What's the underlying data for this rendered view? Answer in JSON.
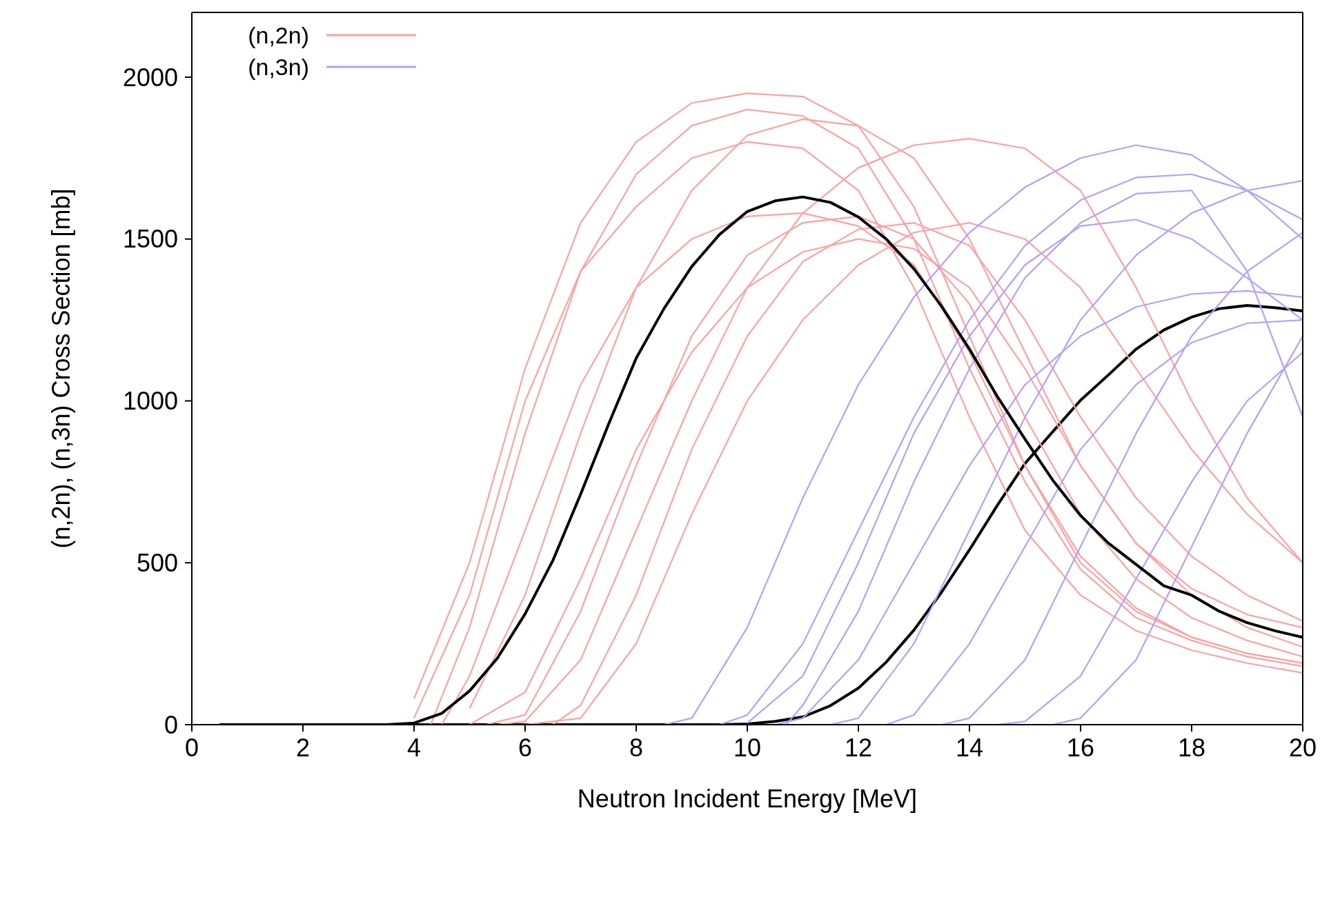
{
  "chart_data": {
    "type": "line",
    "xlabel": "Neutron Incident Energy [MeV]",
    "ylabel": "(n,2n), (n,3n) Cross Section [mb]",
    "xlim": [
      0,
      20
    ],
    "xticks": [
      0,
      2,
      4,
      6,
      8,
      10,
      12,
      14,
      16,
      18,
      20
    ],
    "ylim": [
      0,
      2200
    ],
    "yticks": [
      0,
      500,
      1000,
      1500,
      2000
    ],
    "grid": false,
    "legend": "top left",
    "marker": "none",
    "line_style": "solid",
    "series": [
      {
        "color": "#000000",
        "x": [
          4,
          4.5,
          5,
          5.5,
          6,
          6.5,
          7,
          7.5,
          8,
          8.5,
          9,
          9.5,
          10,
          10.5,
          11,
          11.5,
          12,
          12.5,
          13,
          13.5,
          14,
          14.5,
          15,
          15.5,
          16,
          16.5,
          17,
          17.5,
          18,
          18.5,
          19,
          19.5,
          20
        ],
        "values": [
          0,
          0,
          0,
          0,
          0,
          0,
          0,
          0,
          0,
          0,
          0,
          0,
          2,
          10,
          24,
          59,
          113,
          193,
          292,
          410,
          540,
          677,
          807,
          905,
          1002,
          1080,
          1160,
          1219,
          1259,
          1285,
          1295,
          1288,
          1278
        ]
      },
      {
        "name": "(n,2n)",
        "color": "#ffa0a0",
        "x": [
          4,
          5,
          6,
          7,
          8,
          9,
          10,
          11,
          12,
          13,
          14,
          15,
          16,
          17,
          18,
          19,
          20
        ],
        "values": [
          80,
          500,
          1100,
          1550,
          1800,
          1920,
          1950,
          1940,
          1850,
          1600,
          1200,
          800,
          500,
          350,
          270,
          220,
          190
        ]
      },
      {
        "color": "#ffa0a0",
        "x": [
          4.3,
          5,
          6,
          7,
          8,
          9,
          10,
          11,
          12,
          13,
          14,
          15,
          16,
          17,
          18,
          19,
          20
        ],
        "values": [
          0,
          300,
          900,
          1400,
          1700,
          1850,
          1900,
          1880,
          1780,
          1500,
          1100,
          750,
          480,
          330,
          260,
          210,
          180
        ]
      },
      {
        "color": "#ffa0a0",
        "x": [
          4.5,
          5,
          6,
          7,
          8,
          9,
          10,
          11,
          12,
          13,
          14,
          15,
          16,
          17,
          18,
          19,
          20
        ],
        "values": [
          0,
          150,
          600,
          1050,
          1350,
          1500,
          1570,
          1580,
          1540,
          1420,
          1150,
          800,
          520,
          360,
          270,
          220,
          190
        ]
      },
      {
        "color": "#ffa0a0",
        "x": [
          5,
          6,
          7,
          8,
          9,
          10,
          11,
          12,
          13,
          14,
          15,
          16,
          17,
          18,
          19,
          20
        ],
        "values": [
          50,
          400,
          900,
          1350,
          1650,
          1820,
          1870,
          1850,
          1750,
          1500,
          1150,
          800,
          560,
          420,
          340,
          300
        ]
      },
      {
        "color": "#ffa0a0",
        "x": [
          5,
          6,
          7,
          8,
          9,
          10,
          11,
          12,
          13,
          14,
          15,
          16,
          17,
          18,
          19,
          20
        ],
        "values": [
          0,
          100,
          450,
          850,
          1150,
          1350,
          1460,
          1500,
          1470,
          1350,
          1100,
          800,
          560,
          400,
          300,
          240
        ]
      },
      {
        "color": "#ffa0a0",
        "x": [
          5.5,
          6,
          7,
          8,
          9,
          10,
          11,
          12,
          13,
          14,
          15,
          16,
          17,
          18,
          19,
          20
        ],
        "values": [
          0,
          10,
          200,
          600,
          1000,
          1350,
          1580,
          1720,
          1790,
          1810,
          1780,
          1650,
          1350,
          1000,
          700,
          500
        ]
      },
      {
        "color": "#ffa0a0",
        "x": [
          6,
          7,
          8,
          9,
          10,
          11,
          12,
          13,
          14,
          15,
          16,
          17,
          18,
          19,
          20
        ],
        "values": [
          0,
          20,
          250,
          650,
          1000,
          1250,
          1420,
          1520,
          1550,
          1500,
          1350,
          1100,
          850,
          650,
          500
        ]
      },
      {
        "color": "#ffa0a0",
        "x": [
          5.3,
          6,
          7,
          8,
          9,
          10,
          11,
          12,
          13,
          14,
          15,
          16,
          17,
          18,
          19,
          20
        ],
        "values": [
          0,
          30,
          350,
          800,
          1200,
          1450,
          1550,
          1570,
          1500,
          1300,
          950,
          650,
          450,
          330,
          260,
          210
        ]
      },
      {
        "color": "#ffa0a0",
        "x": [
          4,
          5,
          6,
          7,
          8,
          9,
          10,
          11,
          12,
          13,
          14,
          15,
          16,
          17,
          18,
          19,
          20
        ],
        "values": [
          20,
          400,
          1000,
          1400,
          1600,
          1750,
          1800,
          1780,
          1650,
          1350,
          950,
          600,
          400,
          290,
          230,
          190,
          160
        ]
      },
      {
        "color": "#ffa0a0",
        "x": [
          6.5,
          7,
          8,
          9,
          10,
          11,
          12,
          13,
          14,
          15,
          16,
          17,
          18,
          19,
          20
        ],
        "values": [
          0,
          60,
          400,
          850,
          1200,
          1430,
          1530,
          1550,
          1480,
          1250,
          950,
          700,
          520,
          400,
          320
        ]
      },
      {
        "name": "(n,3n)",
        "color": "#b0a0ff",
        "x": [
          8.5,
          9,
          10,
          11,
          12,
          13,
          14,
          15,
          16,
          17,
          18,
          19,
          20
        ],
        "values": [
          0,
          20,
          300,
          700,
          1050,
          1320,
          1520,
          1660,
          1750,
          1790,
          1760,
          1650,
          1500
        ]
      },
      {
        "color": "#b0a0ff",
        "x": [
          9.5,
          10,
          11,
          12,
          13,
          14,
          15,
          16,
          17,
          18,
          19,
          20
        ],
        "values": [
          0,
          30,
          250,
          600,
          950,
          1250,
          1480,
          1620,
          1690,
          1700,
          1650,
          1560
        ]
      },
      {
        "color": "#b0a0ff",
        "x": [
          10.5,
          11,
          12,
          13,
          14,
          15,
          16,
          17,
          18,
          19,
          20
        ],
        "values": [
          0,
          20,
          200,
          500,
          800,
          1050,
          1200,
          1290,
          1330,
          1340,
          1320
        ]
      },
      {
        "color": "#b0a0ff",
        "x": [
          11.5,
          12,
          13,
          14,
          15,
          16,
          17,
          18,
          19,
          20
        ],
        "values": [
          0,
          20,
          250,
          600,
          950,
          1250,
          1450,
          1580,
          1650,
          1680
        ]
      },
      {
        "color": "#b0a0ff",
        "x": [
          12.5,
          13,
          14,
          15,
          16,
          17,
          18,
          19,
          20
        ],
        "values": [
          0,
          30,
          250,
          550,
          850,
          1050,
          1180,
          1240,
          1250
        ]
      },
      {
        "color": "#b0a0ff",
        "x": [
          13.5,
          14,
          15,
          16,
          17,
          18,
          19,
          20
        ],
        "values": [
          0,
          20,
          200,
          550,
          900,
          1200,
          1400,
          1520
        ]
      },
      {
        "color": "#b0a0ff",
        "x": [
          14.5,
          15,
          16,
          17,
          18,
          19,
          20
        ],
        "values": [
          0,
          10,
          150,
          450,
          750,
          1000,
          1150
        ]
      },
      {
        "color": "#b0a0ff",
        "x": [
          10,
          11,
          12,
          13,
          14,
          15,
          16,
          17,
          18,
          19,
          20
        ],
        "values": [
          5,
          150,
          500,
          900,
          1200,
          1420,
          1540,
          1560,
          1500,
          1380,
          1250
        ]
      },
      {
        "color": "#b0a0ff",
        "x": [
          10.7,
          11,
          12,
          13,
          14,
          15,
          16,
          17,
          18,
          19,
          20
        ],
        "values": [
          0,
          60,
          350,
          750,
          1100,
          1380,
          1550,
          1640,
          1650,
          1400,
          950
        ]
      },
      {
        "color": "#b0a0ff",
        "x": [
          15.5,
          16,
          17,
          18,
          19,
          20
        ],
        "values": [
          0,
          20,
          200,
          550,
          900,
          1200
        ]
      },
      {
        "color": "#000000",
        "x": [
          0.5,
          1,
          1.5,
          2,
          2.5,
          3,
          3.5,
          4,
          4.5,
          5,
          5.5,
          6,
          6.5,
          7,
          7.5,
          8,
          8.5,
          9,
          9.5,
          10,
          10.5,
          11,
          11.5,
          12,
          12.5,
          13,
          13.5,
          14,
          14.5,
          15,
          15.5,
          16,
          16.5,
          17,
          17.5,
          18,
          18.5,
          19,
          19.5,
          20
        ],
        "values": [
          0,
          0,
          0,
          0,
          0,
          0,
          0,
          5,
          35,
          104,
          205,
          342,
          507,
          712,
          927,
          1132,
          1285,
          1415,
          1514,
          1585,
          1618,
          1630,
          1613,
          1568,
          1500,
          1408,
          1292,
          1160,
          1014,
          882,
          755,
          646,
          561,
          495,
          429,
          400,
          350,
          315,
          290,
          270
        ]
      }
    ]
  }
}
